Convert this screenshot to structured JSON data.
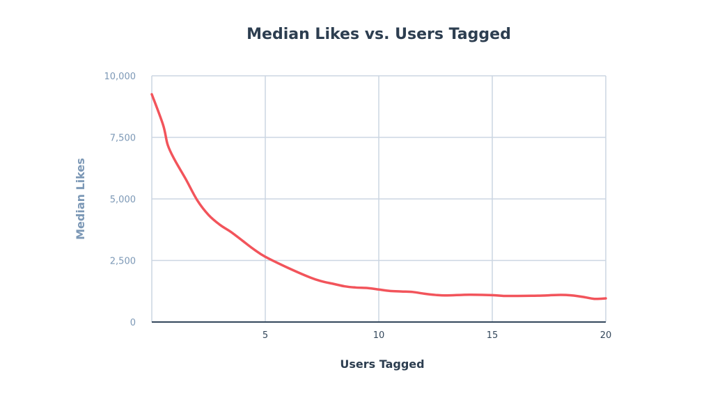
{
  "chart_data": {
    "type": "line",
    "title": "Median Likes vs. Users Tagged",
    "xlabel": "Users Tagged",
    "ylabel": "Median Likes",
    "xlim": [
      0,
      20
    ],
    "ylim": [
      0,
      10000
    ],
    "x_ticks": [
      5,
      10,
      15,
      20
    ],
    "x_tick_labels": [
      "5",
      "10",
      "15",
      "20"
    ],
    "y_ticks": [
      0,
      2500,
      5000,
      7500,
      10000
    ],
    "y_tick_labels": [
      "0",
      "2,500",
      "5,000",
      "7,500",
      "10,000"
    ],
    "grid": true,
    "series": [
      {
        "color": "#f2545b",
        "x": [
          0,
          0.5,
          0.7,
          1,
          1.5,
          2,
          2.5,
          3,
          3.5,
          4,
          4.5,
          5,
          6,
          7,
          7.5,
          8,
          8.5,
          9,
          9.5,
          10,
          10.5,
          11,
          11.5,
          12,
          12.5,
          13,
          14,
          15,
          15.5,
          16,
          17,
          18,
          18.5,
          19,
          19.5,
          20
        ],
        "y": [
          9250,
          8000,
          7200,
          6600,
          5800,
          4950,
          4350,
          3950,
          3650,
          3300,
          2950,
          2650,
          2200,
          1800,
          1650,
          1550,
          1450,
          1400,
          1380,
          1320,
          1260,
          1240,
          1220,
          1150,
          1100,
          1080,
          1110,
          1090,
          1060,
          1060,
          1070,
          1100,
          1080,
          1020,
          940,
          960
        ]
      }
    ]
  }
}
